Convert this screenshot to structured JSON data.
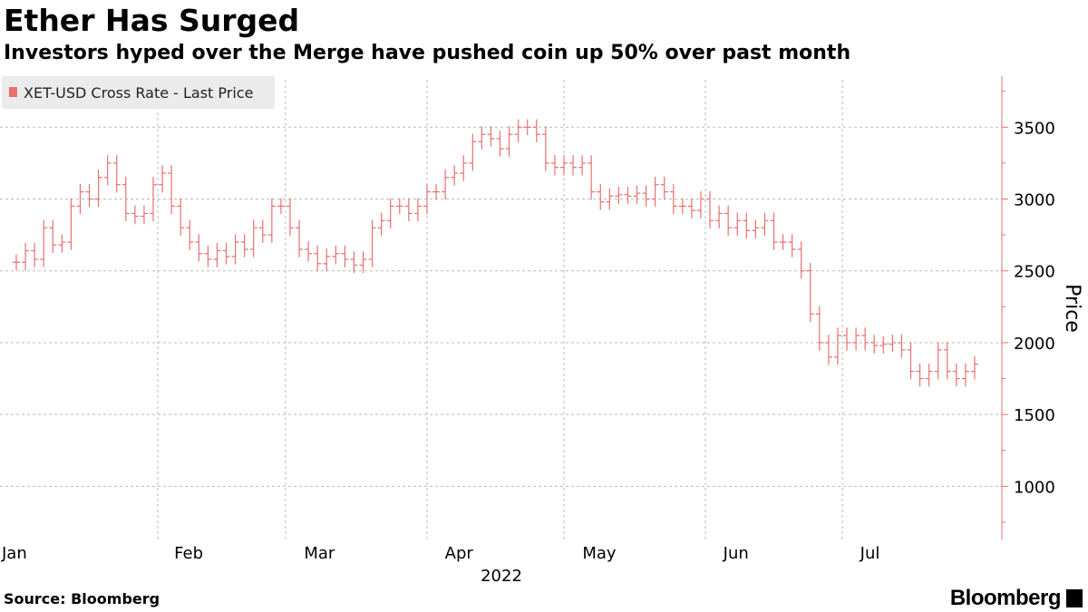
{
  "title": "Ether Has Surged",
  "subtitle": "Investors hyped over the Merge have pushed coin up 50% over past month",
  "footer": {
    "source": "Source: Bloomberg",
    "brand": "Bloomberg"
  },
  "colors": {
    "series": "#e8706f",
    "axis": "#e8706f",
    "grid": "#bbbbbb",
    "legend_bg": "#ebebeb"
  },
  "chart_data": {
    "type": "ohlc",
    "title": "Ether Has Surged",
    "subtitle": "Investors hyped over the Merge have pushed coin up 50% over past month",
    "ylabel": "Price",
    "xlabel": "2022",
    "ylim": [
      630,
      3830
    ],
    "yticks": [
      1000,
      1500,
      2000,
      2500,
      3000,
      3500
    ],
    "grid": true,
    "legend_position": "top-left",
    "x_months": [
      "Jan",
      "Feb",
      "Mar",
      "Apr",
      "May",
      "Jun",
      "Jul"
    ],
    "series": [
      {
        "name": "XET-USD Cross Rate - Last Price",
        "values": [
          {
            "x": "2022-01-01",
            "close": 2560
          },
          {
            "x": "2022-01-03",
            "close": 2640
          },
          {
            "x": "2022-01-05",
            "close": 2580
          },
          {
            "x": "2022-01-07",
            "close": 2800
          },
          {
            "x": "2022-01-09",
            "close": 2680
          },
          {
            "x": "2022-01-11",
            "close": 2700
          },
          {
            "x": "2022-01-13",
            "close": 2950
          },
          {
            "x": "2022-01-15",
            "close": 3050
          },
          {
            "x": "2022-01-17",
            "close": 3000
          },
          {
            "x": "2022-01-19",
            "close": 3150
          },
          {
            "x": "2022-01-21",
            "close": 3250
          },
          {
            "x": "2022-01-23",
            "close": 3100
          },
          {
            "x": "2022-01-25",
            "close": 2900
          },
          {
            "x": "2022-01-27",
            "close": 2880
          },
          {
            "x": "2022-01-29",
            "close": 2900
          },
          {
            "x": "2022-01-31",
            "close": 3100
          },
          {
            "x": "2022-02-02",
            "close": 3180
          },
          {
            "x": "2022-02-04",
            "close": 2950
          },
          {
            "x": "2022-02-06",
            "close": 2800
          },
          {
            "x": "2022-02-08",
            "close": 2700
          },
          {
            "x": "2022-02-10",
            "close": 2620
          },
          {
            "x": "2022-02-12",
            "close": 2580
          },
          {
            "x": "2022-02-14",
            "close": 2640
          },
          {
            "x": "2022-02-16",
            "close": 2600
          },
          {
            "x": "2022-02-18",
            "close": 2700
          },
          {
            "x": "2022-02-20",
            "close": 2650
          },
          {
            "x": "2022-02-22",
            "close": 2800
          },
          {
            "x": "2022-02-24",
            "close": 2750
          },
          {
            "x": "2022-02-26",
            "close": 2950
          },
          {
            "x": "2022-02-28",
            "close": 2950
          },
          {
            "x": "2022-03-02",
            "close": 2800
          },
          {
            "x": "2022-03-04",
            "close": 2650
          },
          {
            "x": "2022-03-06",
            "close": 2620
          },
          {
            "x": "2022-03-08",
            "close": 2550
          },
          {
            "x": "2022-03-10",
            "close": 2600
          },
          {
            "x": "2022-03-12",
            "close": 2620
          },
          {
            "x": "2022-03-14",
            "close": 2580
          },
          {
            "x": "2022-03-16",
            "close": 2540
          },
          {
            "x": "2022-03-18",
            "close": 2580
          },
          {
            "x": "2022-03-20",
            "close": 2800
          },
          {
            "x": "2022-03-22",
            "close": 2850
          },
          {
            "x": "2022-03-24",
            "close": 2950
          },
          {
            "x": "2022-03-26",
            "close": 2950
          },
          {
            "x": "2022-03-28",
            "close": 2900
          },
          {
            "x": "2022-03-30",
            "close": 2950
          },
          {
            "x": "2022-04-01",
            "close": 3050
          },
          {
            "x": "2022-04-03",
            "close": 3050
          },
          {
            "x": "2022-04-05",
            "close": 3150
          },
          {
            "x": "2022-04-07",
            "close": 3180
          },
          {
            "x": "2022-04-09",
            "close": 3250
          },
          {
            "x": "2022-04-11",
            "close": 3400
          },
          {
            "x": "2022-04-13",
            "close": 3450
          },
          {
            "x": "2022-04-15",
            "close": 3420
          },
          {
            "x": "2022-04-17",
            "close": 3350
          },
          {
            "x": "2022-04-19",
            "close": 3450
          },
          {
            "x": "2022-04-21",
            "close": 3500
          },
          {
            "x": "2022-04-23",
            "close": 3500
          },
          {
            "x": "2022-04-25",
            "close": 3450
          },
          {
            "x": "2022-04-27",
            "close": 3250
          },
          {
            "x": "2022-04-29",
            "close": 3220
          },
          {
            "x": "2022-05-01",
            "close": 3250
          },
          {
            "x": "2022-05-03",
            "close": 3220
          },
          {
            "x": "2022-05-05",
            "close": 3250
          },
          {
            "x": "2022-05-07",
            "close": 3050
          },
          {
            "x": "2022-05-09",
            "close": 2980
          },
          {
            "x": "2022-05-11",
            "close": 3020
          },
          {
            "x": "2022-05-13",
            "close": 3030
          },
          {
            "x": "2022-05-15",
            "close": 3020
          },
          {
            "x": "2022-05-17",
            "close": 3040
          },
          {
            "x": "2022-05-19",
            "close": 3000
          },
          {
            "x": "2022-05-21",
            "close": 3100
          },
          {
            "x": "2022-05-23",
            "close": 3050
          },
          {
            "x": "2022-05-25",
            "close": 2950
          },
          {
            "x": "2022-05-27",
            "close": 2950
          },
          {
            "x": "2022-05-29",
            "close": 2920
          },
          {
            "x": "2022-05-31",
            "close": 3000
          },
          {
            "x": "2022-06-02",
            "close": 2850
          },
          {
            "x": "2022-06-04",
            "close": 2900
          },
          {
            "x": "2022-06-06",
            "close": 2800
          },
          {
            "x": "2022-06-08",
            "close": 2850
          },
          {
            "x": "2022-06-10",
            "close": 2780
          },
          {
            "x": "2022-06-12",
            "close": 2800
          },
          {
            "x": "2022-06-14",
            "close": 2850
          },
          {
            "x": "2022-06-16",
            "close": 2700
          },
          {
            "x": "2022-06-18",
            "close": 2700
          },
          {
            "x": "2022-06-20",
            "close": 2650
          },
          {
            "x": "2022-06-22",
            "close": 2500
          },
          {
            "x": "2022-06-24",
            "close": 2200
          },
          {
            "x": "2022-06-26",
            "close": 2000
          },
          {
            "x": "2022-06-28",
            "close": 1900
          },
          {
            "x": "2022-06-30",
            "close": 2050
          },
          {
            "x": "2022-07-02",
            "close": 2000
          },
          {
            "x": "2022-07-04",
            "close": 2050
          },
          {
            "x": "2022-07-06",
            "close": 2000
          },
          {
            "x": "2022-07-08",
            "close": 1980
          },
          {
            "x": "2022-07-10",
            "close": 1990
          },
          {
            "x": "2022-07-12",
            "close": 2000
          },
          {
            "x": "2022-07-14",
            "close": 1950
          },
          {
            "x": "2022-07-16",
            "close": 1800
          },
          {
            "x": "2022-07-18",
            "close": 1750
          },
          {
            "x": "2022-07-20",
            "close": 1800
          },
          {
            "x": "2022-07-22",
            "close": 1950
          },
          {
            "x": "2022-07-24",
            "close": 1800
          },
          {
            "x": "2022-07-26",
            "close": 1750
          },
          {
            "x": "2022-07-28",
            "close": 1800
          },
          {
            "x": "2022-07-30",
            "close": 1850
          }
        ]
      }
    ]
  }
}
